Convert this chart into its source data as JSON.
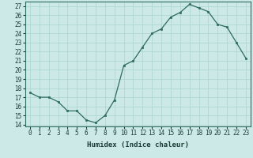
{
  "xlabel": "Humidex (Indice chaleur)",
  "x": [
    0,
    1,
    2,
    3,
    4,
    5,
    6,
    7,
    8,
    9,
    10,
    11,
    12,
    13,
    14,
    15,
    16,
    17,
    18,
    19,
    20,
    21,
    22,
    23
  ],
  "y": [
    17.5,
    17.0,
    17.0,
    16.5,
    15.5,
    15.5,
    14.5,
    14.2,
    15.0,
    16.7,
    20.5,
    21.0,
    22.5,
    24.0,
    24.5,
    25.8,
    26.3,
    27.2,
    26.8,
    26.4,
    25.0,
    24.7,
    23.0,
    21.3
  ],
  "ylim": [
    13.8,
    27.5
  ],
  "yticks": [
    14,
    15,
    16,
    17,
    18,
    19,
    20,
    21,
    22,
    23,
    24,
    25,
    26,
    27
  ],
  "xticks": [
    0,
    1,
    2,
    3,
    4,
    5,
    6,
    7,
    8,
    9,
    10,
    11,
    12,
    13,
    14,
    15,
    16,
    17,
    18,
    19,
    20,
    21,
    22,
    23
  ],
  "line_color": "#2e6b5e",
  "marker_color": "#2e6b5e",
  "bg_color": "#cce9e7",
  "grid_color": "#aad4d0",
  "label_color": "#1a3d35",
  "tick_color": "#1a3d35",
  "tick_fontsize": 5.5,
  "label_fontsize": 6.5
}
